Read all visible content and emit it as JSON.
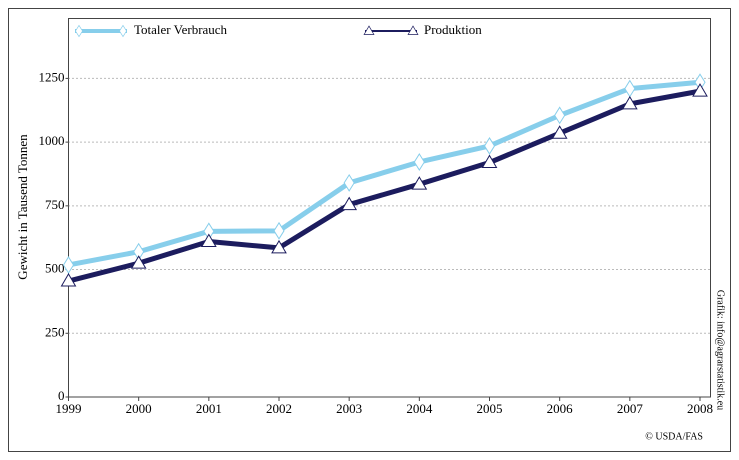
{
  "chart_data": {
    "type": "line",
    "y_label": "Gewicht in Tausend Tonnen",
    "x": [
      1999,
      2000,
      2001,
      2002,
      2003,
      2004,
      2005,
      2006,
      2007,
      2008
    ],
    "series": [
      {
        "name": "Totaler Verbrauch",
        "color": "#87ceeb",
        "marker": "diamond",
        "values": [
          518,
          570,
          650,
          652,
          840,
          922,
          985,
          1105,
          1210,
          1235
        ]
      },
      {
        "name": "Produktion",
        "color": "#1c1c5e",
        "marker": "triangle",
        "values": [
          455,
          525,
          610,
          585,
          755,
          835,
          920,
          1035,
          1150,
          1200
        ]
      }
    ],
    "xlim": [
      1999,
      2008
    ],
    "xticks": [
      1999,
      2000,
      2001,
      2002,
      2003,
      2004,
      2005,
      2006,
      2007,
      2008
    ],
    "ylim": [
      0,
      1485
    ],
    "yticks": [
      0,
      250,
      500,
      750,
      1000,
      1250
    ],
    "grid": true,
    "legend": "top",
    "annotations": [
      "Grafik: info@agrarstatistik.eu",
      "© USDA/FAS"
    ]
  }
}
